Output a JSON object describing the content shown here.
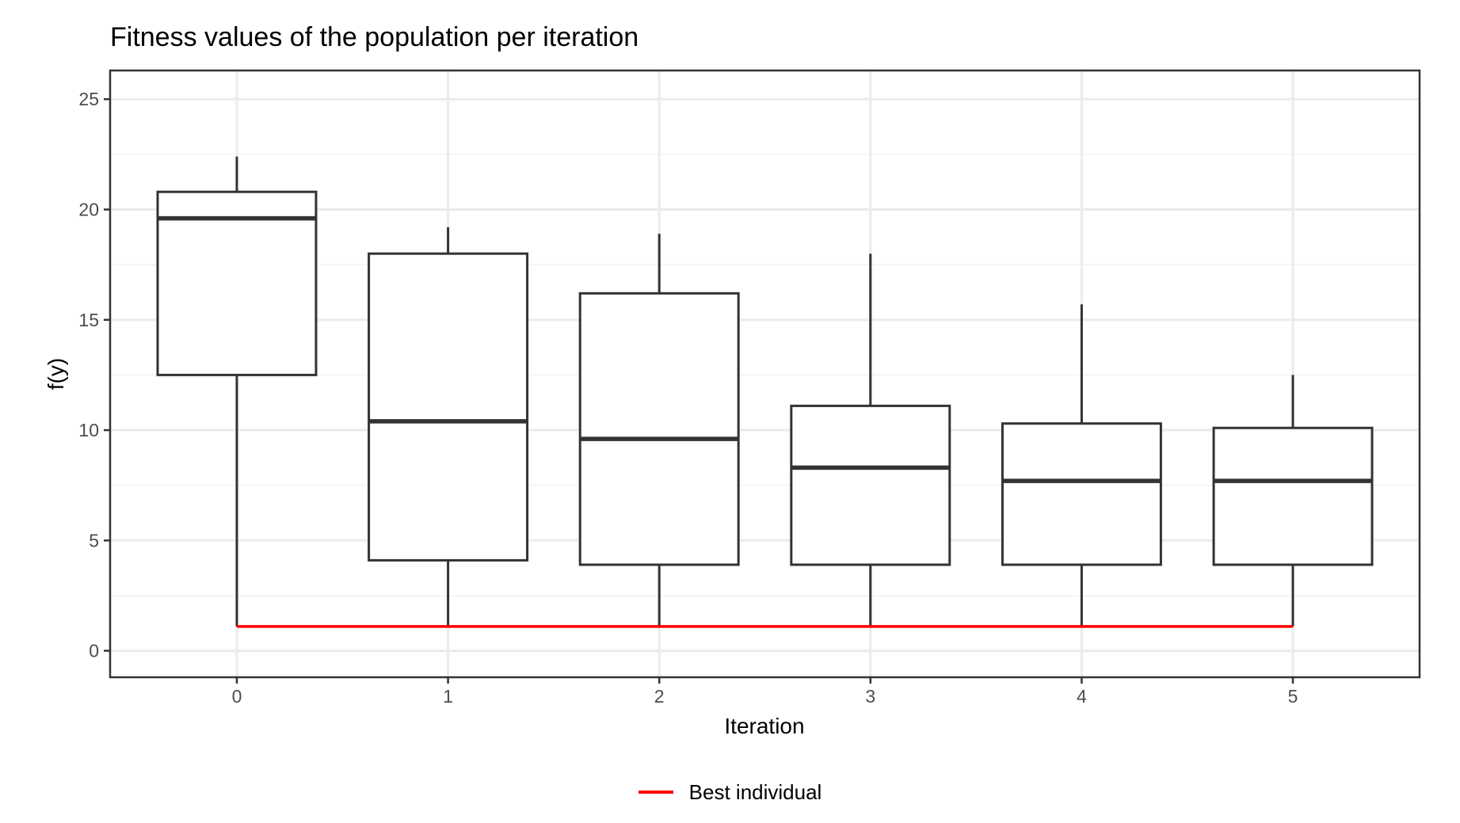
{
  "chart_data": {
    "type": "box",
    "title": "Fitness values of the population per iteration",
    "xlabel": "Iteration",
    "ylabel": "f(y)",
    "categories": [
      "0",
      "1",
      "2",
      "3",
      "4",
      "5"
    ],
    "ylim": [
      -1.2,
      26.3
    ],
    "yticks": [
      0,
      5,
      10,
      15,
      20,
      25
    ],
    "grid": true,
    "boxes": [
      {
        "x": "0",
        "whisker_low": 1.1,
        "q1": 12.5,
        "median": 19.6,
        "q3": 20.8,
        "whisker_high": 22.4
      },
      {
        "x": "1",
        "whisker_low": 1.1,
        "q1": 4.1,
        "median": 10.4,
        "q3": 18.0,
        "whisker_high": 19.2
      },
      {
        "x": "2",
        "whisker_low": 1.1,
        "q1": 3.9,
        "median": 9.6,
        "q3": 16.2,
        "whisker_high": 18.9
      },
      {
        "x": "3",
        "whisker_low": 1.1,
        "q1": 3.9,
        "median": 8.3,
        "q3": 11.1,
        "whisker_high": 18.0
      },
      {
        "x": "4",
        "whisker_low": 1.1,
        "q1": 3.9,
        "median": 7.7,
        "q3": 10.3,
        "whisker_high": 15.7
      },
      {
        "x": "5",
        "whisker_low": 1.1,
        "q1": 3.9,
        "median": 7.7,
        "q3": 10.1,
        "whisker_high": 12.5
      }
    ],
    "series": [
      {
        "name": "Best individual",
        "type": "line",
        "color": "#ff0000",
        "values": [
          1.1,
          1.1,
          1.1,
          1.1,
          1.1,
          1.1
        ]
      }
    ],
    "legend_position": "bottom"
  }
}
